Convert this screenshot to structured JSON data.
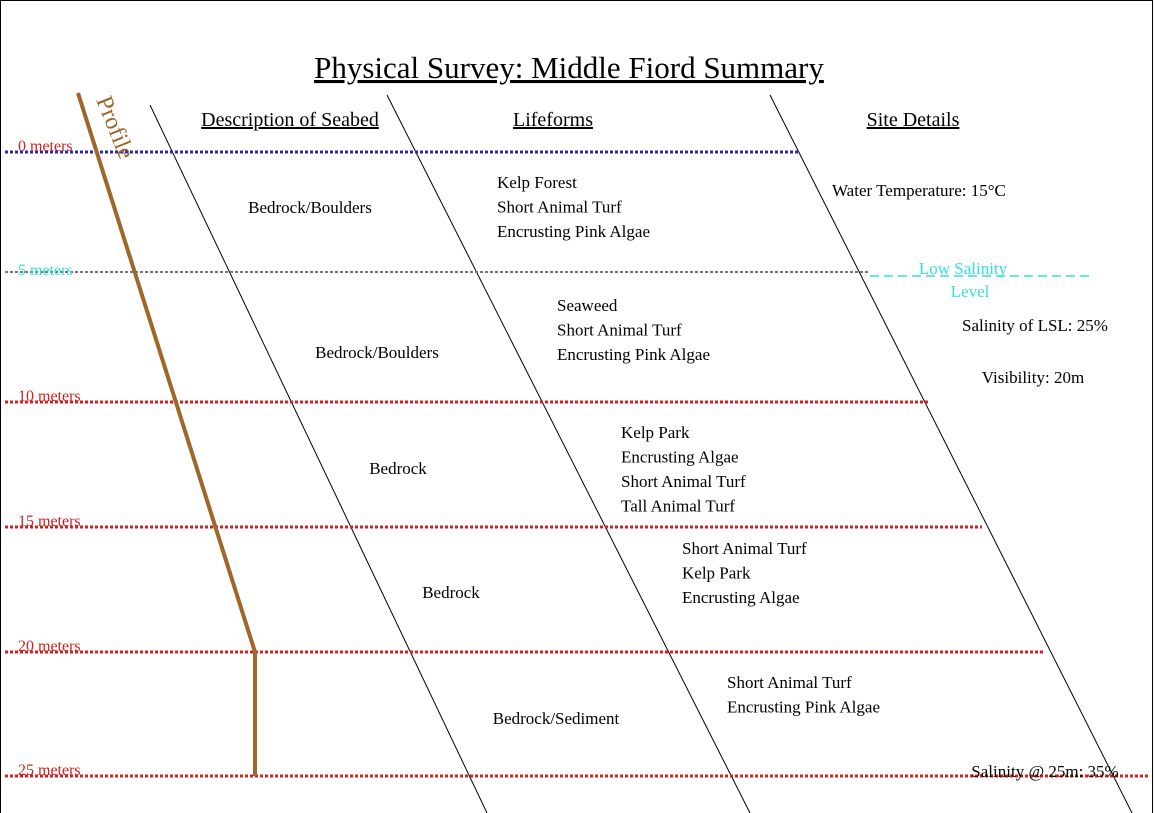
{
  "title": "Physical Survey: Middle Fiord Summary",
  "headers": [
    "Description of Seabed",
    "Lifeforms",
    "Site Details"
  ],
  "profile_label": "Profile",
  "depths": [
    "0 meters",
    "5 meters",
    "10 meters",
    "15 meters",
    "20 meters",
    "25 meters"
  ],
  "seabed": [
    "Bedrock/Boulders",
    "Bedrock/Boulders",
    "Bedrock",
    "Bedrock",
    "Bedrock/Sediment"
  ],
  "lifeforms": [
    [
      "Kelp Forest",
      "Short Animal Turf",
      "Encrusting Pink Algae"
    ],
    [
      "Seaweed",
      "Short Animal Turf",
      "Encrusting Pink Algae"
    ],
    [
      "Kelp Park",
      "Encrusting Algae",
      "Short Animal Turf",
      "Tall Animal Turf"
    ],
    [
      "Short Animal Turf",
      "Kelp Park",
      "Encrusting Algae"
    ],
    [
      "Short Animal Turf",
      "Encrusting Pink Algae"
    ]
  ],
  "site_details": {
    "water_temperature": "Water Temperature: 15°C",
    "low_salinity_level": [
      "Low Salinity",
      "Level"
    ],
    "salinity_lsl": "Salinity of LSL: 25%",
    "visibility": "Visibility: 20m",
    "salinity_25m": "Salinity @ 25m: 35%"
  }
}
